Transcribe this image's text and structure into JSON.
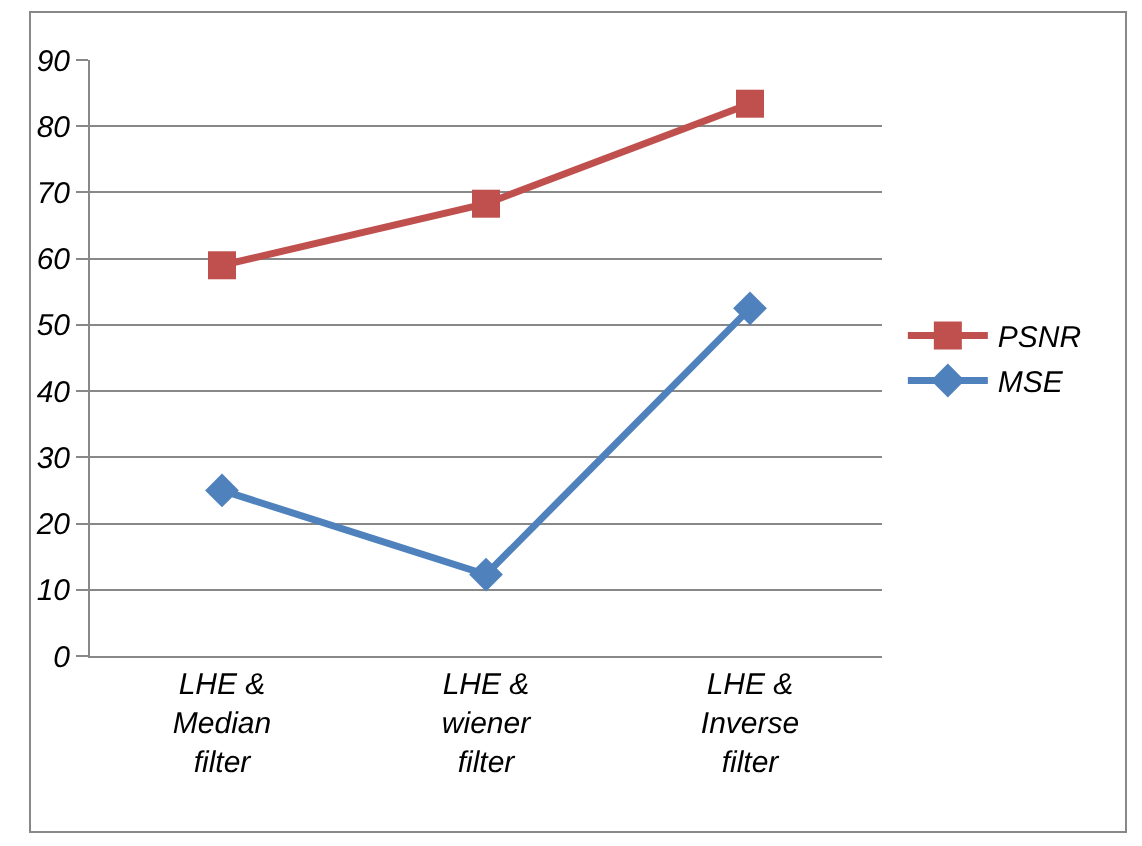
{
  "chart_data": {
    "type": "line",
    "categories": [
      "LHE &\nMedian\nfilter",
      "LHE &\nwiener\nfilter",
      "LHE &\nInverse\nfilter"
    ],
    "series": [
      {
        "name": "PSNR",
        "color": "#c0504d",
        "values": [
          59,
          68.3,
          83.4
        ],
        "marker": "square"
      },
      {
        "name": "MSE",
        "color": "#4f81bd",
        "values": [
          25,
          12.3,
          52.5
        ],
        "marker": "diamond"
      }
    ],
    "ylim": [
      0,
      90
    ],
    "yticks": [
      0,
      10,
      20,
      30,
      40,
      50,
      60,
      70,
      80,
      90
    ],
    "grid": "y",
    "legend": "right",
    "line_style": "solid"
  }
}
